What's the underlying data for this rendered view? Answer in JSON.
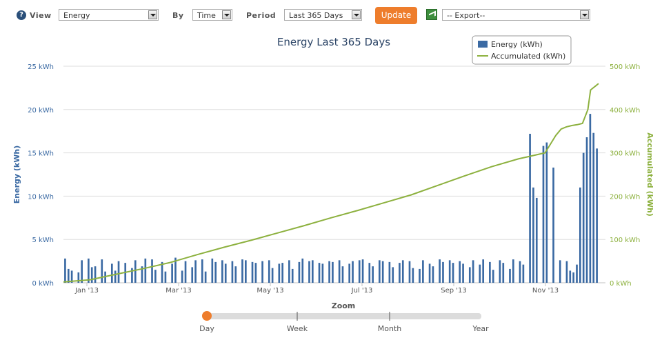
{
  "toolbar": {
    "help_icon": "?",
    "view_label": "View",
    "view_value": "Energy",
    "by_label": "By",
    "by_value": "Time",
    "period_label": "Period",
    "period_value": "Last 365 Days",
    "update_label": "Update",
    "export_value": "-- Export--"
  },
  "zoom": {
    "title": "Zoom",
    "levels": [
      "Day",
      "Week",
      "Month",
      "Year"
    ],
    "selected": "Day"
  },
  "colors": {
    "energy": "#3b6aa3",
    "accumulated": "#8db13f",
    "accent": "#ee7d2c"
  },
  "chart_data": {
    "type": "bar",
    "title": "Energy Last 365 Days",
    "x_tick_labels": [
      "Jan '13",
      "Mar '13",
      "May '13",
      "Jul '13",
      "Sep '13",
      "Nov '13"
    ],
    "y_left": {
      "label": "Energy (kWh)",
      "ticks": [
        "0 kWh",
        "5 kWh",
        "10 kWh",
        "15 kWh",
        "20 kWh",
        "25 kWh"
      ],
      "range": [
        0,
        25
      ]
    },
    "y_right": {
      "label": "Accumulated (kWh)",
      "ticks": [
        "0 kWh",
        "100 kWh",
        "200 kWh",
        "300 kWh",
        "400 kWh",
        "500 kWh"
      ],
      "range": [
        0,
        500
      ]
    },
    "legend_position": "top-right",
    "series": [
      {
        "name": "Energy (kWh)",
        "type": "bar",
        "axis": "left",
        "values": [
          2.8,
          1.6,
          1.4,
          0,
          1.2,
          2.6,
          0,
          2.8,
          1.8,
          1.9,
          0,
          2.7,
          1.3,
          0,
          2.2,
          1.4,
          2.5,
          0,
          2.3,
          0,
          1.7,
          2.6,
          0,
          1.9,
          2.8,
          0,
          2.7,
          1.5,
          0,
          2.4,
          1.3,
          0,
          2.2,
          2.9,
          0,
          1.4,
          2.5,
          0,
          1.8,
          2.6,
          0,
          2.7,
          1.3,
          0,
          2.8,
          2.4,
          0,
          2.6,
          2.2,
          0,
          2.5,
          1.9,
          0,
          2.7,
          2.6,
          0,
          2.4,
          2.3,
          0,
          2.5,
          0,
          2.6,
          1.7,
          0,
          2.2,
          2.3,
          0,
          2.6,
          1.6,
          0,
          2.4,
          2.8,
          0,
          2.5,
          2.6,
          0,
          2.3,
          2.2,
          0,
          2.5,
          2.4,
          0,
          2.6,
          1.9,
          0,
          2.2,
          2.5,
          0,
          2.6,
          2.7,
          0,
          2.3,
          1.9,
          0,
          2.6,
          2.5,
          0,
          2.4,
          1.8,
          0,
          2.3,
          2.6,
          0,
          2.5,
          1.7,
          0,
          1.6,
          2.6,
          0,
          2.2,
          1.9,
          0,
          2.7,
          2.4,
          0,
          2.6,
          2.3,
          0,
          2.5,
          2.2,
          0,
          1.8,
          2.6,
          0,
          2.1,
          2.7,
          0,
          2.4,
          1.5,
          0,
          2.6,
          2.3,
          0,
          1.6,
          2.7,
          0,
          2.5,
          2.1,
          0,
          17.2,
          11,
          9.8,
          0,
          15.8,
          16.2,
          0,
          13.3,
          0,
          2.6,
          0,
          2.5,
          1.4,
          1.2,
          2.1,
          11,
          15,
          16.8,
          19.5,
          17.3,
          15.5
        ]
      },
      {
        "name": "Accumulated (kWh)",
        "type": "line",
        "axis": "right",
        "x_fraction": [
          0,
          0.05,
          0.1,
          0.15,
          0.2,
          0.25,
          0.3,
          0.35,
          0.4,
          0.45,
          0.5,
          0.55,
          0.6,
          0.65,
          0.7,
          0.75,
          0.8,
          0.85,
          0.9,
          0.91,
          0.92,
          0.93,
          0.94,
          0.95,
          0.96,
          0.97,
          0.98,
          0.985,
          0.99,
          0.995,
          1
        ],
        "values": [
          2,
          7,
          20,
          33,
          47,
          65,
          82,
          98,
          115,
          132,
          150,
          167,
          185,
          203,
          225,
          247,
          268,
          286,
          300,
          320,
          340,
          355,
          360,
          363,
          365,
          368,
          400,
          445,
          450,
          455,
          460
        ]
      }
    ]
  }
}
